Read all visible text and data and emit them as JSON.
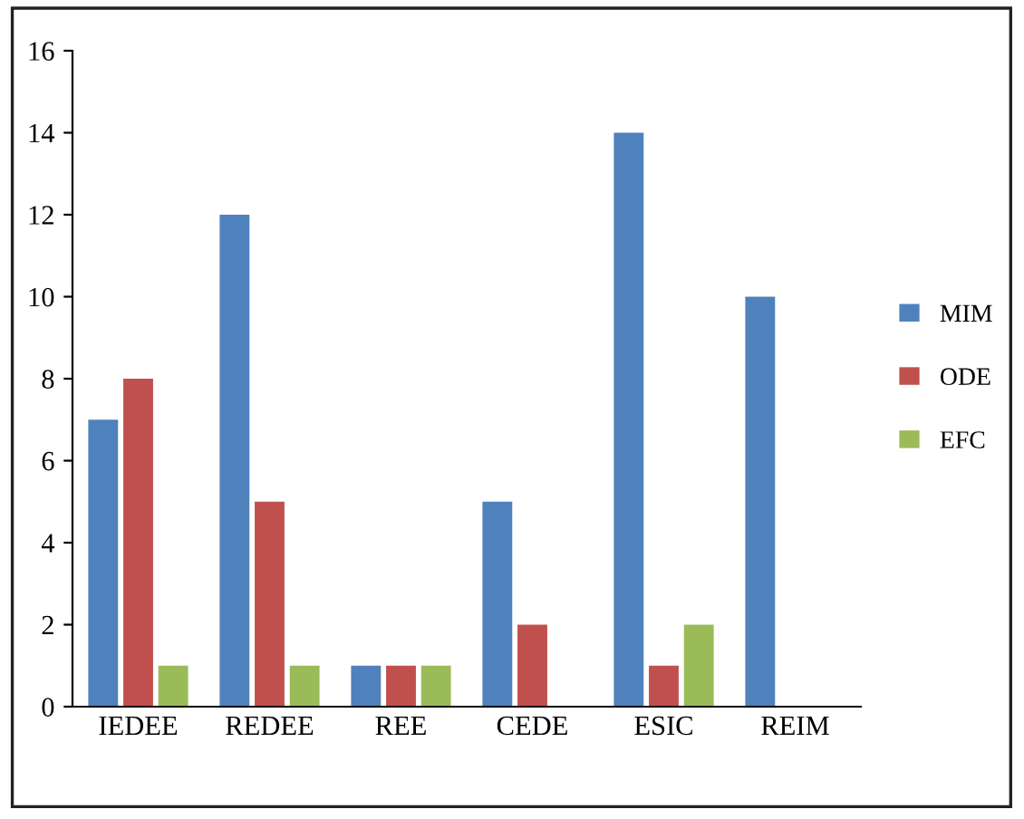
{
  "chart_data": {
    "type": "bar",
    "categories": [
      "IEDEE",
      "REDEE",
      "REE",
      "CEDE",
      "ESIC",
      "REIM"
    ],
    "series": [
      {
        "name": "MIM",
        "color": "#4f81bd",
        "values": [
          7,
          12,
          1,
          5,
          14,
          10
        ]
      },
      {
        "name": "ODE",
        "color": "#c0504d",
        "values": [
          8,
          5,
          1,
          2,
          1,
          0
        ]
      },
      {
        "name": "EFC",
        "color": "#9bbb59",
        "values": [
          1,
          1,
          1,
          0,
          2,
          0
        ]
      }
    ],
    "ylim": [
      0,
      16
    ],
    "yticks": [
      0,
      2,
      4,
      6,
      8,
      10,
      12,
      14,
      16
    ],
    "grid": false,
    "legend": "right"
  }
}
